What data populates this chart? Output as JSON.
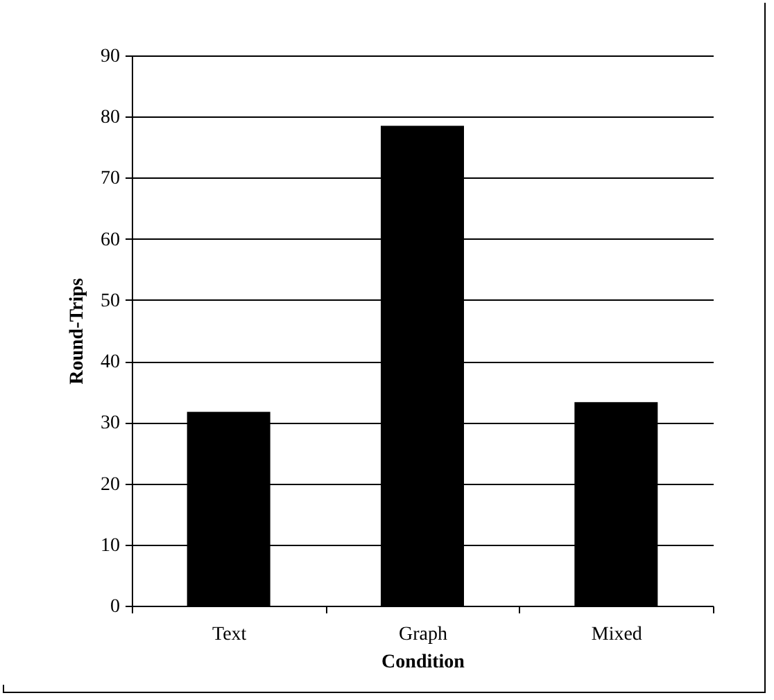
{
  "chart_data": {
    "type": "bar",
    "xlabel": "Condition",
    "ylabel": "Round-Trips",
    "categories": [
      "Text",
      "Graph",
      "Mixed"
    ],
    "values": [
      31.7,
      78.5,
      33.3
    ],
    "color": "#000000",
    "ylim": [
      0,
      90
    ],
    "yticks": [
      0,
      10,
      20,
      30,
      40,
      50,
      60,
      70,
      80,
      90
    ],
    "grid": "y"
  }
}
